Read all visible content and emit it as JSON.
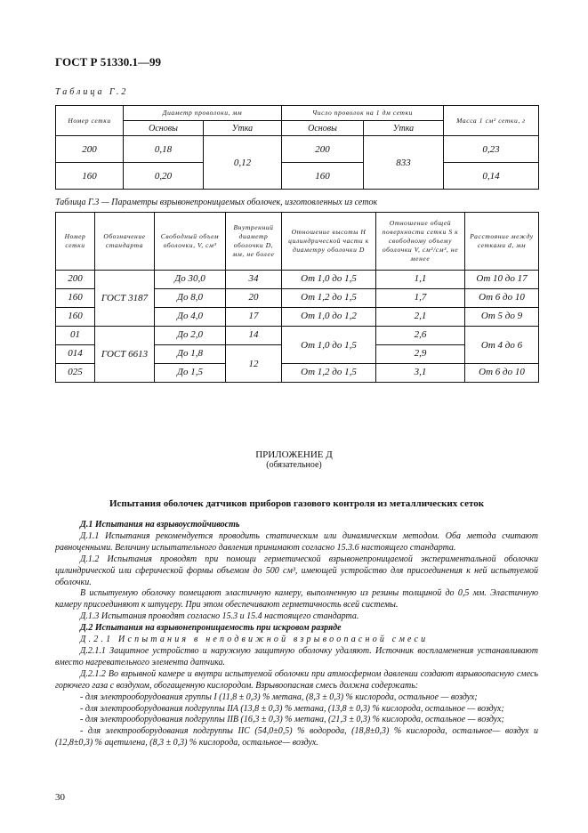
{
  "header": "ГОСТ Р 51330.1—99",
  "table_g2": {
    "caption": "Таблица Г.2",
    "headers": {
      "mesh_number": "Номер сетки",
      "wire_diameter": "Диаметр проволоки, мм",
      "wire_count": "Число проволок на 1 дм сетки",
      "mass": "Масса 1 см² сетки, г",
      "warp": "Основы",
      "weft": "Утка"
    },
    "rows": [
      {
        "mesh": "200",
        "diam_warp": "0,18",
        "diam_weft": "0,12",
        "count_warp": "200",
        "count_weft": "833",
        "mass": "0,23"
      },
      {
        "mesh": "160",
        "diam_warp": "0,20",
        "count_warp": "160",
        "mass": "0,14"
      }
    ]
  },
  "table_g3": {
    "caption": "Таблица Г.3 — Параметры взрывонепроницаемых оболочек, изготовленных из сеток",
    "headers": [
      "Номер сетки",
      "Обозначение стандарта",
      "Свободный объем оболочки, V, см³",
      "Внутренний диаметр оболочки D, мм, не более",
      "Отношение высоты H цилиндрической части к диаметру оболочки D",
      "Отношение общей поверхности сетки S к свободному объему оболочки V, см²/см³, не менее",
      "Расстояние между сетками d, мм"
    ],
    "rows": [
      {
        "mesh": "200",
        "standard": "ГОСТ 3187",
        "volume": "До 30,0",
        "diameter": "34",
        "ratio_h": "От 1,0 до 1,5",
        "ratio_s": "1,1",
        "distance": "От 10 до 17"
      },
      {
        "mesh": "160",
        "volume": "До 8,0",
        "diameter": "20",
        "ratio_h": "От 1,2 до 1,5",
        "ratio_s": "1,7",
        "distance": "От 6 до 10"
      },
      {
        "mesh": "160",
        "volume": "До 4,0",
        "diameter": "17",
        "ratio_h": "От 1,0 до 1,2",
        "ratio_s": "2,1",
        "distance": "От 5 до 9"
      },
      {
        "mesh": "01",
        "standard": "ГОСТ 6613",
        "volume": "До 2,0",
        "diameter": "14",
        "ratio_h": "От 1,0 до 1,5",
        "ratio_s": "2,6",
        "distance": "От 4 до 6"
      },
      {
        "mesh": "014",
        "volume": "До 1,8",
        "diameter": "12",
        "ratio_s": "2,9"
      },
      {
        "mesh": "025",
        "volume": "До 1,5",
        "ratio_h": "От 1,2 до 1,5",
        "ratio_s": "3,1",
        "distance": "От 6 до 10"
      }
    ]
  },
  "appendix": {
    "title": "ПРИЛОЖЕНИЕ Д",
    "subtitle": "(обязательное)",
    "heading": "Испытания оболочек датчиков приборов газового контроля из металлических сеток"
  },
  "paragraphs": [
    "Д.1 Испытания на взрывоустойчивость",
    "Д.1.1 Испытания рекомендуется проводить статическим или динамическим методом. Оба метода считают равноценными. Величину испытательного давления принимают согласно 15.3.6 настоящего стандарта.",
    "Д.1.2 Испытания проводят при помощи герметической взрывонепроницаемой экспериментальной оболочки цилиндрической или сферической формы объемом до 500 см³, имеющей устройство для присоединения к ней испытуемой оболочки.",
    "В испытуемую оболочку помещают эластичную камеру, выполненную из резины толщиной до 0,5 мм. Эластичную камеру присоединяют к штуцеру. При этом обеспечивают герметичность всей системы.",
    "Д.1.3 Испытания проводят согласно 15.3 и 15.4 настоящего стандарта.",
    "Д.2 Испытания на взрывонепроницаемость при искровом разряде",
    "Д.2.1 Испытания в неподвижной взрывоопасной смеси",
    "Д.2.1.1 Защитное устройство и наружную защитную оболочку удаляют. Источник воспламенения устанавливают вместо нагревательного элемента датчика.",
    "Д.2.1.2 Во взрывной камере и внутри испытуемой оболочки при атмосферном давлении создают взрывоопасную смесь горючего газа с воздухом, обогащенную кислородом. Взрывоопасная смесь должна содержать:",
    "- для электрооборудования группы I (11,8 ± 0,3) % метана, (8,3 ± 0,3) % кислорода, остальное — воздух;",
    "- для электрооборудования подгруппы IIA (13,8 ± 0,3) % метана, (13,8 ± 0,3) % кислорода, остальное — воздух;",
    "- для электрооборудования подгруппы IIB (16,3 ± 0,3) % метана, (21,3 ± 0,3) % кислорода, остальное — воздух;",
    "- для электрооборудования подгруппы IIC (54,0±0,5) % водорода, (18,8±0,3) % кислорода, остальное— воздух и (12,8±0,3) % ацетилена, (8,3 ± 0,3) % кислорода, остальное— воздух."
  ],
  "page_number": "30"
}
